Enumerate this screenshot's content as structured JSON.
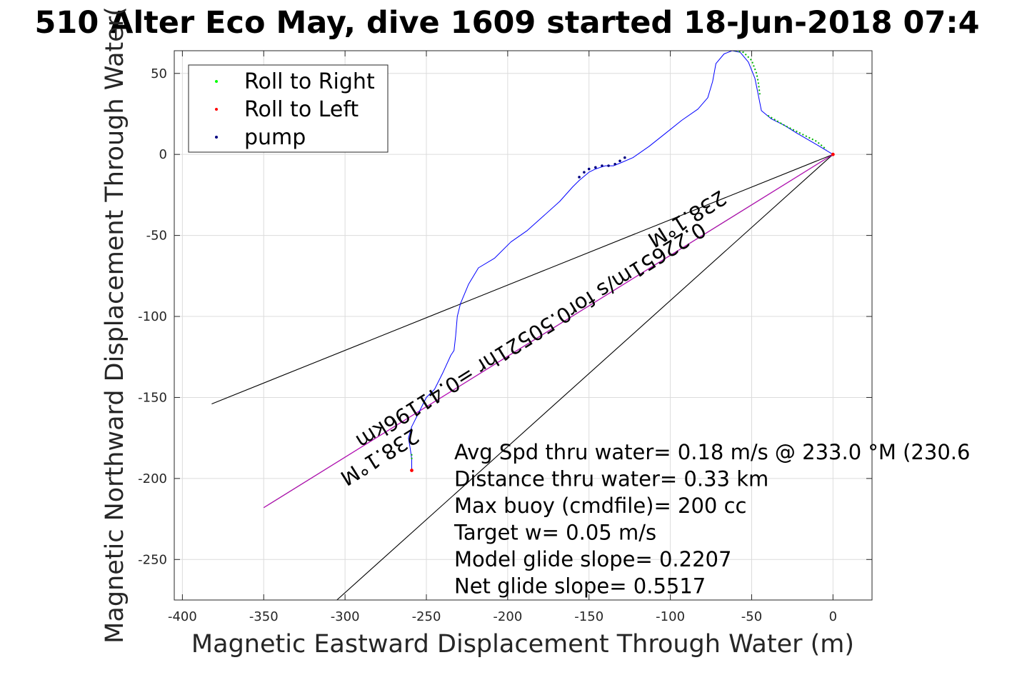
{
  "chart_data": {
    "type": "line",
    "title": "510 Alter Eco May, dive 1609 started 18-Jun-2018 07:4",
    "xlabel": "Magnetic Eastward Displacement Through Water (m)",
    "ylabel": "Magnetic Northward Displacement Through Water(",
    "xlim": [
      -405,
      24
    ],
    "ylim": [
      -275,
      64
    ],
    "xticks": [
      -400,
      -350,
      -300,
      -250,
      -200,
      -150,
      -100,
      -50,
      0
    ],
    "yticks": [
      -250,
      -200,
      -150,
      -100,
      -50,
      0,
      50
    ],
    "grid": true,
    "legend": {
      "placement": "top-left",
      "entries": [
        {
          "label": "Roll to Right",
          "color": "#00ff00"
        },
        {
          "label": "Roll to Left",
          "color": "#ff0000"
        },
        {
          "label": "pump",
          "color": "#000080"
        }
      ]
    },
    "track": {
      "color": "#0000ff",
      "x": [
        0,
        -10,
        -22,
        -30,
        -38,
        -44,
        -46,
        -48,
        -52,
        -57,
        -62,
        -67,
        -72,
        -74,
        -77,
        -83,
        -93,
        -103,
        -113,
        -123,
        -130,
        -135,
        -140,
        -143,
        -146,
        -150,
        -156,
        -160,
        -168,
        -178,
        -188,
        -198,
        -208,
        -218,
        -224,
        -229,
        -231,
        -232,
        -233,
        -235,
        -240,
        -245,
        -250,
        -255,
        -259,
        -261,
        -260,
        -259,
        -259
      ],
      "y": [
        0,
        6,
        13,
        18,
        22,
        27,
        37,
        47,
        57,
        63,
        64,
        62,
        56,
        45,
        35,
        28,
        21,
        13,
        5,
        -2,
        -5,
        -7,
        -7,
        -8,
        -9,
        -11,
        -16,
        -20,
        -29,
        -38,
        -47,
        -54,
        -64,
        -70,
        -80,
        -92,
        -100,
        -112,
        -121,
        -124,
        -135,
        -145,
        -150,
        -160,
        -168,
        -175,
        -181,
        -188,
        -195
      ]
    },
    "roll_right_segments": [
      {
        "x": [
          -60,
          -55,
          -50,
          -47,
          -46,
          -45
        ],
        "y": [
          64,
          63,
          58,
          50,
          45,
          37
        ]
      },
      {
        "x": [
          -40,
          -30,
          -20,
          -10,
          -4
        ],
        "y": [
          24,
          18,
          13,
          8,
          3
        ]
      },
      {
        "x": [
          -259,
          -259
        ],
        "y": [
          -185,
          -189
        ]
      }
    ],
    "roll_left_points": [
      {
        "x": 0,
        "y": 0
      },
      {
        "x": -259,
        "y": -195
      }
    ],
    "pump_points": [
      {
        "x": -156,
        "y": -14
      },
      {
        "x": -153,
        "y": -11
      },
      {
        "x": -150,
        "y": -9
      },
      {
        "x": -146,
        "y": -8
      },
      {
        "x": -142,
        "y": -7
      },
      {
        "x": -138,
        "y": -7
      },
      {
        "x": -134,
        "y": -6
      },
      {
        "x": -131,
        "y": -4
      },
      {
        "x": -128,
        "y": -2
      }
    ],
    "guide_lines": [
      {
        "x": [
          0,
          -382
        ],
        "y": [
          0,
          -154
        ],
        "color": "#000000"
      },
      {
        "x": [
          0,
          -305
        ],
        "y": [
          0,
          -275
        ],
        "color": "#000000"
      },
      {
        "x": [
          0,
          -350
        ],
        "y": [
          0,
          -218
        ],
        "color": "#000000"
      },
      {
        "x": [
          0,
          -350
        ],
        "y": [
          0,
          -218
        ],
        "color": "#cc00cc"
      }
    ],
    "heading_labels": [
      {
        "text": "238.1°M",
        "x": -92,
        "y": -36,
        "angle": 148
      },
      {
        "text": "238.1°M",
        "x": -281,
        "y": -183,
        "angle": 148
      },
      {
        "text": "0.22651m/s for0.50521hr =0.41196km",
        "x": -188,
        "y": -108,
        "angle": 148
      }
    ],
    "annotation_lines": [
      "Avg Spd thru water=  0.18 m/s @ 233.0 °M (230.6",
      "Distance thru water=  0.33 km",
      "Max buoy (cmdfile)= 200 cc",
      "Target w= 0.05 m/s",
      "Model glide slope= 0.2207",
      "Net glide slope= 0.5517"
    ]
  }
}
